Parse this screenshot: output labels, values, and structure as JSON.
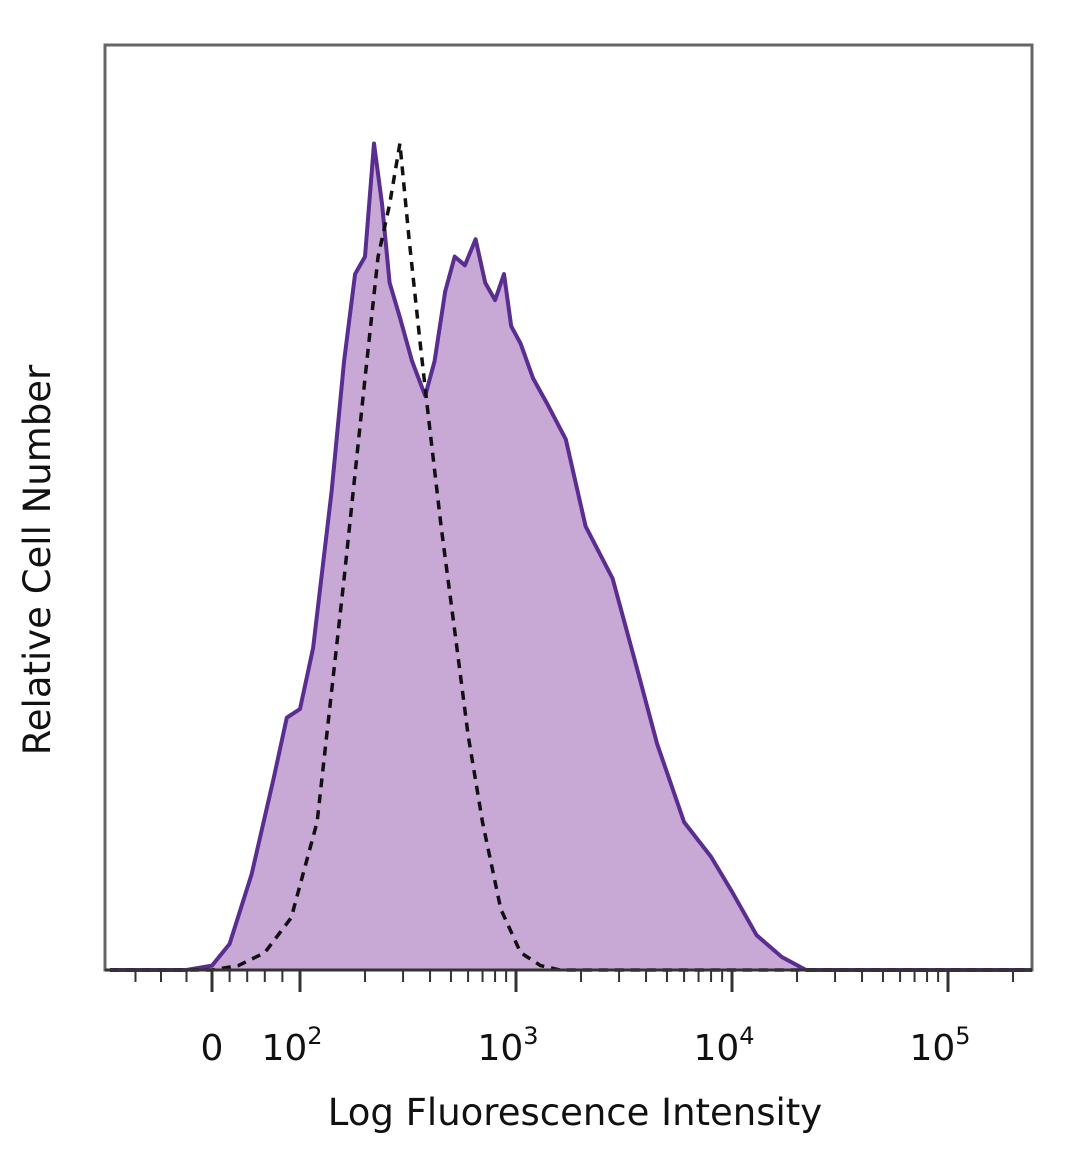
{
  "chart_data": {
    "type": "area",
    "xlabel": "Log Fluorescence Intensity",
    "ylabel": "Relative Cell Number",
    "x_scale": "biexponential",
    "x_ticks": [
      {
        "value": 0,
        "label": "0"
      },
      {
        "value": 100,
        "label": "10",
        "exp": "2"
      },
      {
        "value": 1000,
        "label": "10",
        "exp": "3"
      },
      {
        "value": 10000,
        "label": "10",
        "exp": "4"
      },
      {
        "value": 100000,
        "label": "10",
        "exp": "5"
      }
    ],
    "ylim": [
      0,
      100
    ],
    "grid": false,
    "series": [
      {
        "style": "filled-solid",
        "color": "#5a2d91",
        "fill": "#c8a9d6",
        "points": [
          [
            -80,
            0
          ],
          [
            -20,
            0
          ],
          [
            0,
            0.5
          ],
          [
            20,
            3
          ],
          [
            45,
            11
          ],
          [
            70,
            22
          ],
          [
            85,
            29
          ],
          [
            100,
            30
          ],
          [
            115,
            37
          ],
          [
            140,
            55
          ],
          [
            160,
            70
          ],
          [
            180,
            80
          ],
          [
            200,
            82
          ],
          [
            220,
            95
          ],
          [
            240,
            88
          ],
          [
            260,
            79
          ],
          [
            290,
            75
          ],
          [
            330,
            70
          ],
          [
            380,
            66
          ],
          [
            420,
            70
          ],
          [
            470,
            78
          ],
          [
            520,
            82
          ],
          [
            580,
            81
          ],
          [
            650,
            84
          ],
          [
            720,
            79
          ],
          [
            800,
            77
          ],
          [
            880,
            80
          ],
          [
            950,
            74
          ],
          [
            1050,
            72
          ],
          [
            1200,
            68
          ],
          [
            1400,
            65
          ],
          [
            1700,
            61
          ],
          [
            2100,
            51
          ],
          [
            2800,
            45
          ],
          [
            3600,
            35
          ],
          [
            4500,
            26
          ],
          [
            6000,
            17
          ],
          [
            8000,
            13
          ],
          [
            10000,
            9
          ],
          [
            13000,
            4
          ],
          [
            17000,
            1.5
          ],
          [
            22000,
            0
          ],
          [
            300000,
            0
          ]
        ]
      },
      {
        "style": "dashed",
        "color": "#111111",
        "points": [
          [
            -80,
            0
          ],
          [
            0,
            0
          ],
          [
            30,
            0.5
          ],
          [
            60,
            2
          ],
          [
            90,
            6
          ],
          [
            120,
            17
          ],
          [
            160,
            45
          ],
          [
            200,
            68
          ],
          [
            230,
            82
          ],
          [
            260,
            88
          ],
          [
            290,
            95
          ],
          [
            320,
            84
          ],
          [
            360,
            72
          ],
          [
            400,
            62
          ],
          [
            450,
            51
          ],
          [
            520,
            39
          ],
          [
            600,
            27
          ],
          [
            700,
            17
          ],
          [
            850,
            7
          ],
          [
            1050,
            2
          ],
          [
            1300,
            0.5
          ],
          [
            1600,
            0
          ],
          [
            300000,
            0
          ]
        ]
      }
    ]
  }
}
